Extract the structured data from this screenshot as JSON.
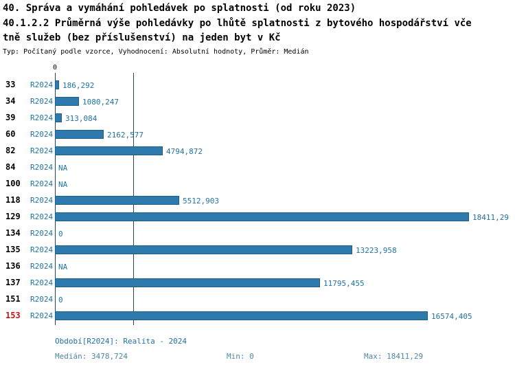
{
  "title": {
    "line1": "40. Správa a vymáhání pohledávek po splatnosti (od roku 2023)",
    "line2": "40.1.2.2 Průměrná výše pohledávky po lhůtě splatnosti z bytového hospodářství vče",
    "line3": "tně služeb (bez příslušenství) na jeden byt v Kč",
    "subtitle": "Typ: Počítaný podle vzorce, Vyhodnocení: Absolutní hodnoty, Průměr: Medián"
  },
  "chart_data": {
    "type": "bar",
    "orientation": "horizontal",
    "axis_zero_label": "0",
    "series_label": "R2024",
    "categories": [
      "33",
      "34",
      "39",
      "60",
      "82",
      "84",
      "100",
      "118",
      "129",
      "134",
      "135",
      "136",
      "137",
      "151",
      "153"
    ],
    "values": [
      186.292,
      1080.247,
      313.084,
      2162.577,
      4794.872,
      null,
      null,
      5512.903,
      18411.29,
      0,
      13223.958,
      null,
      11795.455,
      0,
      16574.405
    ],
    "value_labels": [
      "186,292",
      "1080,247",
      "313,084",
      "2162,577",
      "4794,872",
      "NA",
      "NA",
      "5512,903",
      "18411,29",
      "0",
      "13223,958",
      "NA",
      "11795,455",
      "0",
      "16574,405"
    ],
    "highlighted_category": "153",
    "xlim": [
      0,
      18411.29
    ],
    "median_line_value": 3478.724,
    "bar_color": "#2e79ad",
    "highlight_color": "#cc1414",
    "legend_position": "none",
    "grid": false
  },
  "footer": {
    "period": "Období[R2024]: Realita - 2024",
    "median": "Medián: 3478,724",
    "min": "Min: 0",
    "max": "Max: 18411,29"
  }
}
